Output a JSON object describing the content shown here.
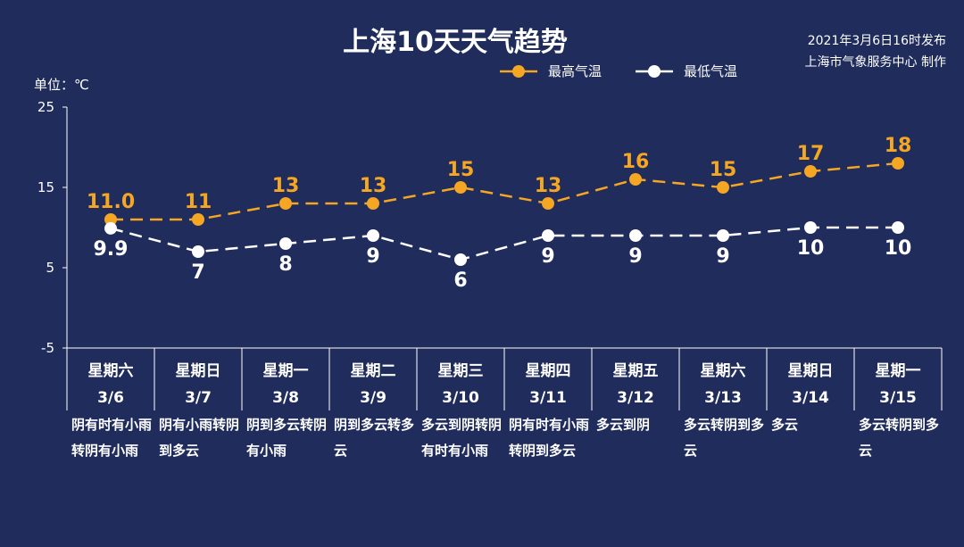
{
  "header": {
    "title": "上海10天天气趋势",
    "publish_time": "2021年3月6日16时发布",
    "publisher": "上海市气象服务中心 制作",
    "unit": "单位：℃"
  },
  "colors": {
    "background": "#1f2c5c",
    "high": "#f5a623",
    "low": "#ffffff"
  },
  "chart_data": {
    "type": "line",
    "title": "上海10天天气趋势",
    "ylabel": "单位：℃",
    "ylim": [
      -5,
      25
    ],
    "yticks": [
      25,
      15,
      5,
      -5
    ],
    "legend_position": "top-right",
    "categories": [
      {
        "day": "星期六",
        "date": "3/6"
      },
      {
        "day": "星期日",
        "date": "3/7"
      },
      {
        "day": "星期一",
        "date": "3/8"
      },
      {
        "day": "星期二",
        "date": "3/9"
      },
      {
        "day": "星期三",
        "date": "3/10"
      },
      {
        "day": "星期四",
        "date": "3/11"
      },
      {
        "day": "星期五",
        "date": "3/12"
      },
      {
        "day": "星期六",
        "date": "3/13"
      },
      {
        "day": "星期日",
        "date": "3/14"
      },
      {
        "day": "星期一",
        "date": "3/15"
      }
    ],
    "series": [
      {
        "name": "最高气温",
        "values": [
          11.0,
          11,
          13,
          13,
          15,
          13,
          16,
          15,
          17,
          18
        ],
        "labels": [
          "11.0",
          "11",
          "13",
          "13",
          "15",
          "13",
          "16",
          "15",
          "17",
          "18"
        ]
      },
      {
        "name": "最低气温",
        "values": [
          9.9,
          7,
          8,
          9,
          6,
          9,
          9,
          9,
          10,
          10
        ],
        "labels": [
          "9.9",
          "7",
          "8",
          "9",
          "6",
          "9",
          "9",
          "9",
          "10",
          "10"
        ]
      }
    ]
  },
  "weather": [
    "阴有时有小雨转阴有小雨",
    "阴有小雨转阴到多云",
    "阴到多云转阴有小雨",
    "阴到多云转多云",
    "多云到阴转阴有时有小雨",
    "阴有时有小雨转阴到多云",
    "多云到阴",
    "多云转阴到多云",
    "多云",
    "多云转阴到多云"
  ]
}
